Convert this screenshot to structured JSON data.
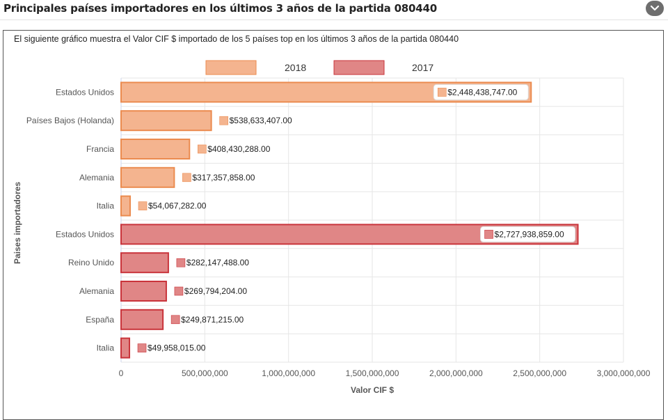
{
  "header": {
    "title": "Principales países importadores en los últimos 3 años de la partida 080440"
  },
  "description": "El siguiente gráfico muestra el Valor CIF $ importado de los 5 países top en los últimos 3 años de la partida 080440",
  "icons": {
    "collapse": "chevron-down-icon"
  },
  "colors": {
    "2018": {
      "fill": "#f4b48f",
      "stroke": "#eb8b4f"
    },
    "2017": {
      "fill": "#e08686",
      "stroke": "#c9343b"
    }
  },
  "chart_data": {
    "type": "bar",
    "orientation": "horizontal",
    "xlabel": "Valor CIF $",
    "ylabel": "Paises importadores",
    "xlim": [
      0,
      3000000000
    ],
    "xticks": [
      0,
      500000000,
      1000000000,
      1500000000,
      2000000000,
      2500000000,
      3000000000
    ],
    "xtick_labels": [
      "0",
      "500,000,000",
      "1,000,000,000",
      "1,500,000,000",
      "2,000,000,000",
      "2,500,000,000",
      "3,000,000,000"
    ],
    "grid": true,
    "legend": "top-center",
    "series": [
      {
        "name": "2018",
        "categories": [
          "Estados Unidos",
          "Países Bajos (Holanda)",
          "Francia",
          "Alemania",
          "Italia"
        ],
        "values": [
          2448438747,
          538633407,
          408430288,
          317357858,
          54067282
        ],
        "value_labels": [
          "$2,448,438,747.00",
          "$538,633,407.00",
          "$408,430,288.00",
          "$317,357,858.00",
          "$54,067,282.00"
        ]
      },
      {
        "name": "2017",
        "categories": [
          "Estados Unidos",
          "Reino Unido",
          "Alemania",
          "España",
          "Italia"
        ],
        "values": [
          2727938859,
          282147488,
          269794204,
          249871215,
          49958015
        ],
        "value_labels": [
          "$2,727,938,859.00",
          "$282,147,488.00",
          "$269,794,204.00",
          "$249,871,215.00",
          "$49,958,015.00"
        ]
      }
    ]
  }
}
